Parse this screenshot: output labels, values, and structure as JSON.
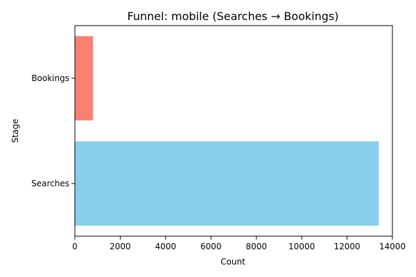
{
  "chart_data": {
    "type": "bar",
    "orientation": "horizontal",
    "title": "Funnel: mobile (Searches → Bookings)",
    "xlabel": "Count",
    "ylabel": "Stage",
    "categories": [
      "Searches",
      "Bookings"
    ],
    "values": [
      13400,
      800
    ],
    "colors": [
      "#87ceeb",
      "#fa8072"
    ],
    "xlim": [
      0,
      14000
    ],
    "xticks": [
      0,
      2000,
      4000,
      6000,
      8000,
      10000,
      12000,
      14000
    ],
    "grid": false,
    "legend": "none"
  }
}
